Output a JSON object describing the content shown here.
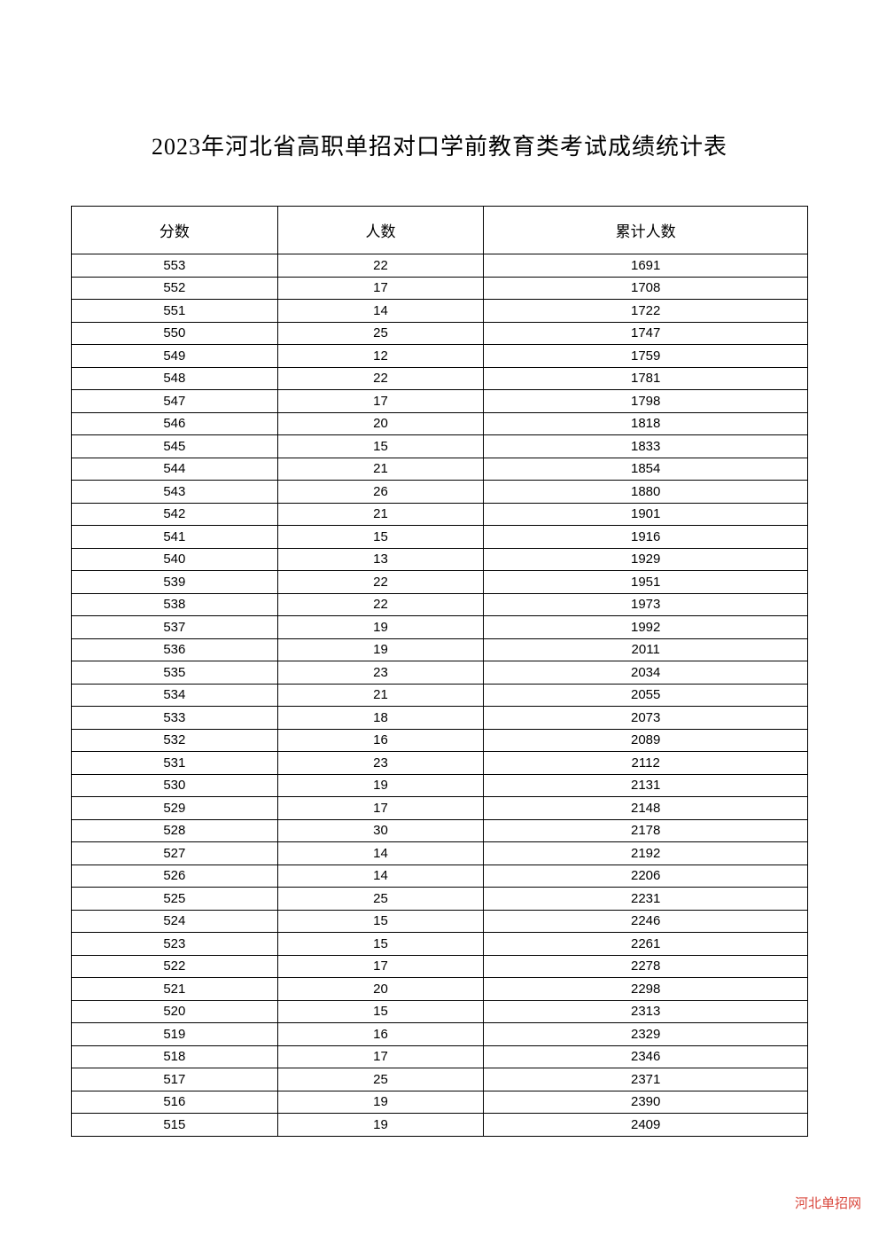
{
  "title": "2023年河北省高职单招对口学前教育类考试成绩统计表",
  "watermark": "河北单招网",
  "table": {
    "type": "table",
    "background_color": "#ffffff",
    "border_color": "#000000",
    "border_width": 1.5,
    "title_fontsize": 26,
    "header_fontsize": 17,
    "cell_fontsize": 15,
    "text_color": "#000000",
    "watermark_color": "#d9463b",
    "columns": [
      {
        "key": "score",
        "label": "分数",
        "width": "28%",
        "align": "center"
      },
      {
        "key": "count",
        "label": "人数",
        "width": "28%",
        "align": "center"
      },
      {
        "key": "cumulative",
        "label": "累计人数",
        "width": "44%",
        "align": "center"
      }
    ],
    "rows": [
      {
        "score": 553,
        "count": 22,
        "cumulative": 1691
      },
      {
        "score": 552,
        "count": 17,
        "cumulative": 1708
      },
      {
        "score": 551,
        "count": 14,
        "cumulative": 1722
      },
      {
        "score": 550,
        "count": 25,
        "cumulative": 1747
      },
      {
        "score": 549,
        "count": 12,
        "cumulative": 1759
      },
      {
        "score": 548,
        "count": 22,
        "cumulative": 1781
      },
      {
        "score": 547,
        "count": 17,
        "cumulative": 1798
      },
      {
        "score": 546,
        "count": 20,
        "cumulative": 1818
      },
      {
        "score": 545,
        "count": 15,
        "cumulative": 1833
      },
      {
        "score": 544,
        "count": 21,
        "cumulative": 1854
      },
      {
        "score": 543,
        "count": 26,
        "cumulative": 1880
      },
      {
        "score": 542,
        "count": 21,
        "cumulative": 1901
      },
      {
        "score": 541,
        "count": 15,
        "cumulative": 1916
      },
      {
        "score": 540,
        "count": 13,
        "cumulative": 1929
      },
      {
        "score": 539,
        "count": 22,
        "cumulative": 1951
      },
      {
        "score": 538,
        "count": 22,
        "cumulative": 1973
      },
      {
        "score": 537,
        "count": 19,
        "cumulative": 1992
      },
      {
        "score": 536,
        "count": 19,
        "cumulative": 2011
      },
      {
        "score": 535,
        "count": 23,
        "cumulative": 2034
      },
      {
        "score": 534,
        "count": 21,
        "cumulative": 2055
      },
      {
        "score": 533,
        "count": 18,
        "cumulative": 2073
      },
      {
        "score": 532,
        "count": 16,
        "cumulative": 2089
      },
      {
        "score": 531,
        "count": 23,
        "cumulative": 2112
      },
      {
        "score": 530,
        "count": 19,
        "cumulative": 2131
      },
      {
        "score": 529,
        "count": 17,
        "cumulative": 2148
      },
      {
        "score": 528,
        "count": 30,
        "cumulative": 2178
      },
      {
        "score": 527,
        "count": 14,
        "cumulative": 2192
      },
      {
        "score": 526,
        "count": 14,
        "cumulative": 2206
      },
      {
        "score": 525,
        "count": 25,
        "cumulative": 2231
      },
      {
        "score": 524,
        "count": 15,
        "cumulative": 2246
      },
      {
        "score": 523,
        "count": 15,
        "cumulative": 2261
      },
      {
        "score": 522,
        "count": 17,
        "cumulative": 2278
      },
      {
        "score": 521,
        "count": 20,
        "cumulative": 2298
      },
      {
        "score": 520,
        "count": 15,
        "cumulative": 2313
      },
      {
        "score": 519,
        "count": 16,
        "cumulative": 2329
      },
      {
        "score": 518,
        "count": 17,
        "cumulative": 2346
      },
      {
        "score": 517,
        "count": 25,
        "cumulative": 2371
      },
      {
        "score": 516,
        "count": 19,
        "cumulative": 2390
      },
      {
        "score": 515,
        "count": 19,
        "cumulative": 2409
      }
    ]
  }
}
